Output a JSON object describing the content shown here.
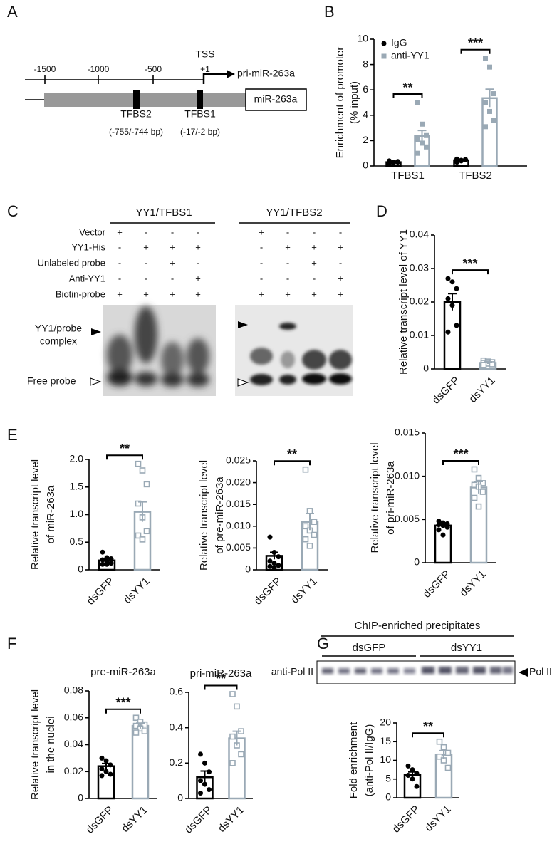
{
  "panel_labels": [
    "A",
    "B",
    "C",
    "D",
    "E",
    "F",
    "G"
  ],
  "promoter_diagram": {
    "positions": [
      "-1500",
      "-1000",
      "-500",
      "+1"
    ],
    "tss": "TSS",
    "transcript": "pri-miR-263a",
    "gene": "miR-263a",
    "sites": [
      {
        "name": "TFBS2",
        "range": "(-755/-744 bp)"
      },
      {
        "name": "TFBS1",
        "range": "(-17/-2 bp)"
      }
    ]
  },
  "emsa": {
    "row_labels": [
      "Vector",
      "YY1-His",
      "Unlabeled probe",
      "Anti-YY1",
      "Biotin-probe"
    ],
    "gels": [
      {
        "title": "YY1/TFBS1",
        "signs": [
          [
            "+",
            "-",
            "-",
            "-"
          ],
          [
            "-",
            "+",
            "+",
            "+"
          ],
          [
            "-",
            "-",
            "+",
            "-"
          ],
          [
            "-",
            "-",
            "-",
            "+"
          ],
          [
            "+",
            "+",
            "+",
            "+"
          ]
        ]
      },
      {
        "title": "YY1/TFBS2",
        "signs": [
          [
            "+",
            "-",
            "-",
            "-"
          ],
          [
            "-",
            "+",
            "+",
            "+"
          ],
          [
            "-",
            "-",
            "+",
            "-"
          ],
          [
            "-",
            "-",
            "-",
            "+"
          ],
          [
            "+",
            "+",
            "+",
            "+"
          ]
        ]
      }
    ],
    "complex_label": [
      "YY1/probe",
      "complex"
    ],
    "free_label": "Free probe"
  },
  "chip_blot": {
    "title": "ChIP-enriched precipitates",
    "groups": [
      "dsGFP",
      "dsYY1"
    ],
    "antibody": "anti-Pol II",
    "band": "Pol II"
  },
  "chart_data": [
    {
      "type": "bar",
      "ylabel": [
        "Enrichment of promoter",
        "(% input)"
      ],
      "categories": [
        "TFBS1",
        "TFBS2"
      ],
      "series": [
        {
          "name": "IgG",
          "color": "#000000",
          "marker": "circle",
          "values": [
            0.3,
            0.45
          ],
          "errors": [
            0.07,
            0.08
          ],
          "points": [
            [
              0.2,
              0.3,
              0.35,
              0.4,
              0.25,
              0.3
            ],
            [
              0.3,
              0.4,
              0.5,
              0.55,
              0.45,
              0.5,
              0.35
            ]
          ]
        },
        {
          "name": "anti-YY1",
          "color": "#9aa9b5",
          "marker": "square",
          "values": [
            2.35,
            5.35
          ],
          "errors": [
            0.45,
            0.7
          ],
          "points": [
            [
              5.0,
              3.3,
              2.4,
              2.1,
              1.8,
              1.5,
              1.0
            ],
            [
              8.5,
              7.8,
              5.7,
              5.0,
              4.3,
              3.6,
              3.1
            ]
          ]
        }
      ],
      "significance": [
        "**",
        "***"
      ],
      "ylim": [
        0,
        10
      ],
      "yticks": [
        0,
        2,
        4,
        6,
        8,
        10
      ],
      "legend": "top-left"
    },
    {
      "type": "bar",
      "ylabel": [
        "Relative transcript level of YY1"
      ],
      "categories": [
        "dsGFP",
        "dsYY1"
      ],
      "values": [
        0.02,
        0.0018
      ],
      "errors": [
        0.0025,
        0.0003
      ],
      "colors": [
        "#000000",
        "#9aa9b5"
      ],
      "markers": [
        "circle",
        "square-open"
      ],
      "points": [
        [
          0.027,
          0.026,
          0.024,
          0.021,
          0.019,
          0.013,
          0.011
        ],
        [
          0.0025,
          0.0022,
          0.002,
          0.0018,
          0.0016,
          0.0014,
          0.0012
        ]
      ],
      "significance": [
        "***"
      ],
      "ylim": [
        0,
        0.04
      ],
      "yticks": [
        0,
        0.01,
        0.02,
        0.03,
        0.04
      ]
    },
    {
      "type": "bar",
      "ylabel": [
        "Relative transcript level",
        "of miR-263a"
      ],
      "categories": [
        "dsGFP",
        "dsYY1"
      ],
      "values": [
        0.17,
        1.05
      ],
      "errors": [
        0.03,
        0.18
      ],
      "colors": [
        "#000000",
        "#9aa9b5"
      ],
      "markers": [
        "circle",
        "square-open"
      ],
      "points": [
        [
          0.32,
          0.22,
          0.2,
          0.18,
          0.15,
          0.12,
          0.1,
          0.1
        ],
        [
          1.92,
          1.8,
          1.55,
          1.2,
          0.95,
          0.7,
          0.62,
          0.55
        ]
      ],
      "significance": [
        "**"
      ],
      "ylim": [
        0,
        2
      ],
      "yticks": [
        0,
        0.5,
        {
          "value": 1,
          "label": "1.0"
        },
        1.5,
        {
          "value": 2,
          "label": "2.0"
        }
      ]
    },
    {
      "type": "bar",
      "ylabel": [
        "Relative transcript level",
        "of pre-miR-263a"
      ],
      "categories": [
        "dsGFP",
        "dsYY1"
      ],
      "values": [
        0.0032,
        0.011
      ],
      "errors": [
        0.0008,
        0.0019
      ],
      "colors": [
        "#000000",
        "#9aa9b5"
      ],
      "markers": [
        "circle",
        "square-open"
      ],
      "points": [
        [
          0.0075,
          0.004,
          0.003,
          0.002,
          0.0015,
          0.001,
          0.0008,
          0.0005
        ],
        [
          0.023,
          0.0135,
          0.011,
          0.01,
          0.009,
          0.008,
          0.007,
          0.0055
        ]
      ],
      "significance": [
        "**"
      ],
      "ylim": [
        0,
        0.025
      ],
      "yticks": [
        0,
        0.005,
        {
          "value": 0.01,
          "label": "0.010"
        },
        0.015,
        {
          "value": 0.02,
          "label": "0.020"
        },
        0.025
      ]
    },
    {
      "type": "bar",
      "ylabel": [
        "Relative transcript level",
        "of pri-miR-263a"
      ],
      "categories": [
        "dsGFP",
        "dsYY1"
      ],
      "values": [
        0.0043,
        0.0087
      ],
      "errors": [
        0.0003,
        0.0007
      ],
      "colors": [
        "#000000",
        "#9aa9b5"
      ],
      "markers": [
        "circle",
        "square-open"
      ],
      "points": [
        [
          0.0048,
          0.0046,
          0.0045,
          0.0044,
          0.0043,
          0.0041,
          0.0038,
          0.0032
        ],
        [
          0.0108,
          0.0098,
          0.0092,
          0.009,
          0.0088,
          0.0082,
          0.0075,
          0.0065
        ]
      ],
      "significance": [
        "***"
      ],
      "ylim": [
        0,
        0.015
      ],
      "yticks": [
        0,
        0.005,
        {
          "value": 0.01,
          "label": "0.010"
        },
        0.015
      ]
    },
    {
      "type": "bar",
      "title": "pre-miR-263a",
      "ylabel": [
        "Relative transcript level",
        "in the nuclei"
      ],
      "categories": [
        "dsGFP",
        "dsYY1"
      ],
      "values": [
        0.024,
        0.054
      ],
      "errors": [
        0.002,
        0.002
      ],
      "colors": [
        "#000000",
        "#9aa9b5"
      ],
      "markers": [
        "circle",
        "square-open"
      ],
      "points": [
        [
          0.03,
          0.028,
          0.025,
          0.022,
          0.02,
          0.018,
          0.017
        ],
        [
          0.06,
          0.057,
          0.055,
          0.054,
          0.052,
          0.05,
          0.049
        ]
      ],
      "significance": [
        "***"
      ],
      "ylim": [
        0,
        0.08
      ],
      "yticks": [
        0,
        0.02,
        0.04,
        0.06,
        0.08
      ]
    },
    {
      "type": "bar",
      "title": "pri-miR-263a",
      "categories": [
        "dsGFP",
        "dsYY1"
      ],
      "values": [
        0.12,
        0.34
      ],
      "errors": [
        0.035,
        0.04
      ],
      "colors": [
        "#000000",
        "#9aa9b5"
      ],
      "markers": [
        "circle",
        "square-open"
      ],
      "points": [
        [
          0.25,
          0.2,
          0.15,
          0.1,
          0.08,
          0.05,
          0.03
        ],
        [
          0.59,
          0.52,
          0.38,
          0.35,
          0.3,
          0.25,
          0.2
        ]
      ],
      "significance": [
        "**"
      ],
      "ylim": [
        0,
        0.6
      ],
      "yticks": [
        0,
        0.2,
        0.4,
        0.6
      ]
    },
    {
      "type": "bar",
      "ylabel": [
        "Fold enrichment",
        "(anti-Pol II/IgG)"
      ],
      "categories": [
        "dsGFP",
        "dsYY1"
      ],
      "values": [
        6.1,
        11.5
      ],
      "errors": [
        0.8,
        1.1
      ],
      "colors": [
        "#000000",
        "#9aa9b5"
      ],
      "markers": [
        "circle",
        "square-open"
      ],
      "points": [
        [
          8.5,
          7.5,
          6.5,
          6,
          5,
          3
        ],
        [
          15,
          13.5,
          12,
          11,
          10,
          8
        ]
      ],
      "significance": [
        "**"
      ],
      "ylim": [
        0,
        20
      ],
      "yticks": [
        0,
        5,
        10,
        15,
        20
      ]
    }
  ]
}
